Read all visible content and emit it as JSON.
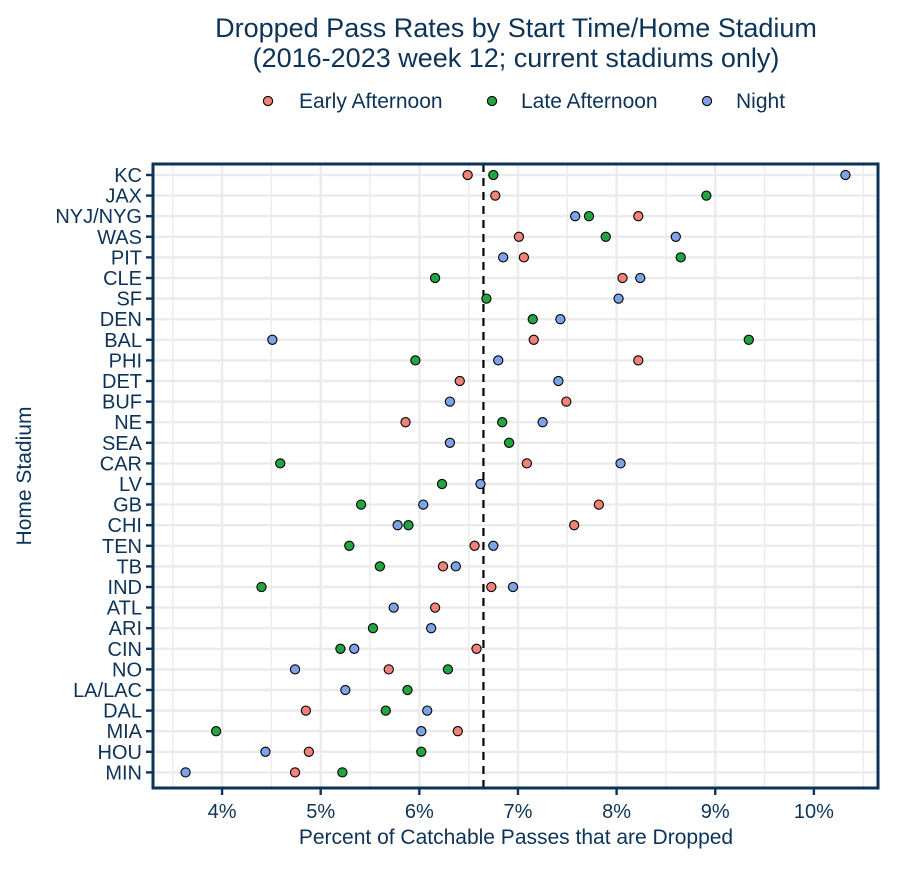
{
  "chart_data": {
    "type": "scatter",
    "title_line1": "Dropped Pass Rates by Start Time/Home Stadium",
    "title_line2": "(2016-2023 week 12; current stadiums only)",
    "xlabel": "Percent of Catchable Passes that are Dropped",
    "ylabel": "Home Stadium",
    "xlim": [
      3.3,
      10.65
    ],
    "xticks": [
      4,
      5,
      6,
      7,
      8,
      9,
      10
    ],
    "xtick_labels": [
      "4%",
      "5%",
      "6%",
      "7%",
      "8%",
      "9%",
      "10%"
    ],
    "reference_line": 6.65,
    "grid": true,
    "legend_position": "top",
    "categories": [
      "KC",
      "JAX",
      "NYJ/NYG",
      "WAS",
      "PIT",
      "CLE",
      "SF",
      "DEN",
      "BAL",
      "PHI",
      "DET",
      "BUF",
      "NE",
      "SEA",
      "CAR",
      "LV",
      "GB",
      "CHI",
      "TEN",
      "TB",
      "IND",
      "ATL",
      "ARI",
      "CIN",
      "NO",
      "LA/LAC",
      "DAL",
      "MIA",
      "HOU",
      "MIN"
    ],
    "series": [
      {
        "name": "Early Afternoon",
        "color": "#f08278",
        "values": [
          6.49,
          6.77,
          8.22,
          7.01,
          7.06,
          8.06,
          null,
          null,
          7.16,
          8.22,
          6.41,
          7.49,
          5.86,
          null,
          7.09,
          null,
          7.82,
          7.57,
          6.56,
          6.24,
          6.73,
          6.16,
          null,
          6.58,
          5.69,
          null,
          4.85,
          6.39,
          4.88,
          4.74
        ]
      },
      {
        "name": "Late Afternoon",
        "color": "#22a541",
        "values": [
          6.75,
          8.91,
          7.72,
          7.89,
          8.65,
          6.16,
          6.68,
          7.15,
          9.34,
          5.96,
          null,
          null,
          6.84,
          6.91,
          4.59,
          6.23,
          5.41,
          5.89,
          5.29,
          5.6,
          4.4,
          null,
          5.53,
          5.2,
          6.29,
          5.88,
          5.66,
          3.94,
          6.02,
          5.22
        ]
      },
      {
        "name": "Night",
        "color": "#7ea2e8",
        "values": [
          10.32,
          null,
          7.58,
          8.6,
          6.85,
          8.24,
          8.02,
          7.43,
          4.51,
          6.8,
          7.41,
          6.31,
          7.25,
          6.31,
          8.04,
          6.62,
          6.04,
          5.78,
          6.75,
          6.37,
          6.95,
          5.74,
          6.12,
          5.34,
          4.74,
          5.25,
          6.08,
          6.02,
          4.44,
          3.63
        ]
      }
    ]
  }
}
